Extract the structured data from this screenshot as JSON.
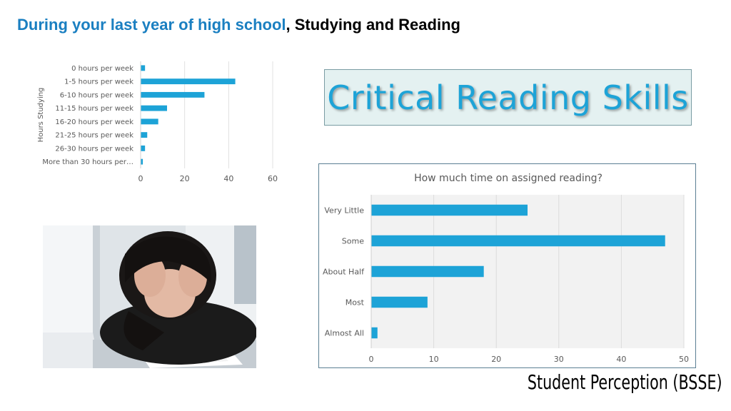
{
  "slide": {
    "title_accent": "During your last year of high school",
    "title_rest": ", Studying and Reading",
    "banner_text": "Critical Reading Skills",
    "caption": "Student Perception (BSSE)"
  },
  "colors": {
    "accent": "#1a7fc1",
    "bar": "#1da3d7",
    "banner_bg": "#e4f1f1",
    "banner_text": "#1da3d7"
  },
  "chart_data": [
    {
      "type": "bar",
      "orientation": "horizontal",
      "title": "",
      "ylabel": "Hours Studying",
      "xlabel": "",
      "categories": [
        "0 hours per week",
        "1-5 hours per week",
        "6-10 hours per week",
        "11-15 hours per week",
        "16-20 hours per week",
        "21-25 hours per week",
        "26-30 hours per week",
        "More than 30 hours per…"
      ],
      "values": [
        2,
        43,
        29,
        12,
        8,
        3,
        2,
        1
      ],
      "xlim": [
        0,
        60
      ],
      "xticks": [
        0,
        20,
        40,
        60
      ],
      "grid": true
    },
    {
      "type": "bar",
      "orientation": "horizontal",
      "title": "How much time on assigned reading?",
      "xlabel": "",
      "ylabel": "",
      "categories": [
        "Very Little",
        "Some",
        "About Half",
        "Most",
        "Almost All"
      ],
      "values": [
        25,
        47,
        18,
        9,
        1
      ],
      "xlim": [
        0,
        50
      ],
      "xticks": [
        0,
        10,
        20,
        30,
        40,
        50
      ],
      "grid": true
    }
  ]
}
